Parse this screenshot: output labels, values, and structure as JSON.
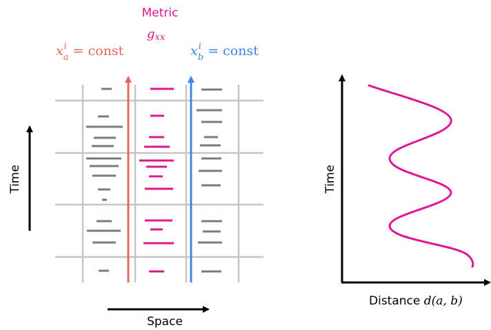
{
  "labels": {
    "metric_title": "Metric",
    "metric_symbol": "g",
    "metric_subscript": "xx",
    "worldline_a": {
      "var": "x",
      "sup": "i",
      "sub": "a",
      "rhs": "= const"
    },
    "worldline_b": {
      "var": "x",
      "sup": "i",
      "sub": "b",
      "rhs": "= const"
    },
    "left_time_axis": "Time",
    "space_axis": "Space",
    "right_time_axis": "Time",
    "distance_axis_prefix": "Distance ",
    "distance_axis_formula": "d(a, b)"
  },
  "colors": {
    "metric": "#e0158f",
    "worldline_a": "#e8665e",
    "worldline_b": "#3f83e6",
    "grid": "#c6c6c6",
    "dash_gray": "#7a7a7a",
    "axis": "#000000"
  }
}
